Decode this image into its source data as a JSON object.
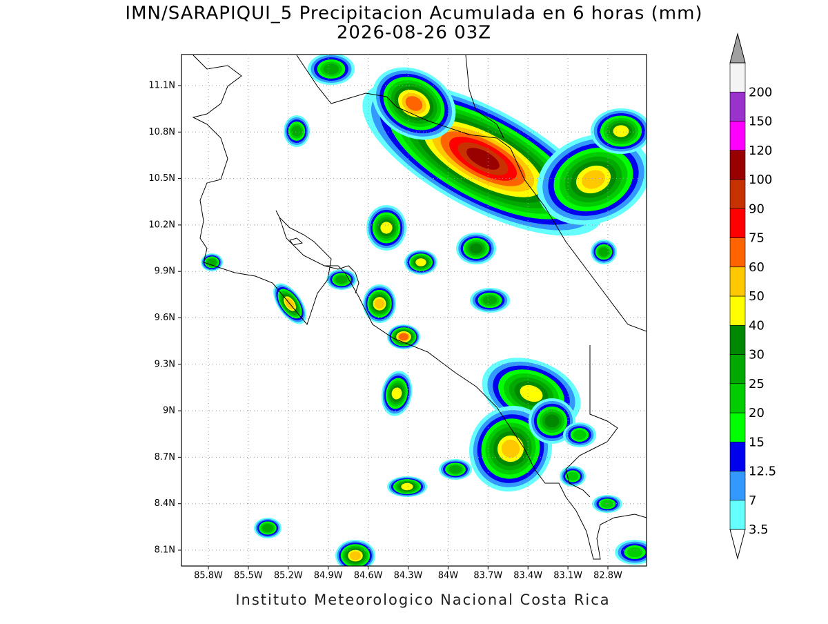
{
  "title": [
    "IMN/SARAPIQUI_5 Precipitacion Acumulada en 6 horas (mm)",
    "2026-08-26 03Z"
  ],
  "lat_labels": [
    "11.1N",
    "10.8N",
    "10.5N",
    "10.2N",
    "9.9N",
    "9.6N",
    "9.3N",
    "9N",
    "8.7N",
    "8.4N",
    "8.1N"
  ],
  "lon_labels": [
    "85.8W",
    "85.5W",
    "85.2W",
    "84.9W",
    "84.6W",
    "84.3W",
    "84W",
    "83.7W",
    "83.4W",
    "83.1W",
    "82.8W"
  ],
  "colorbar": {
    "labels": [
      "3.5",
      "7",
      "12.5",
      "15",
      "20",
      "25",
      "30",
      "40",
      "50",
      "60",
      "75",
      "90",
      "100",
      "120",
      "150",
      "200"
    ],
    "colors": [
      "#66ffff",
      "#3399ff",
      "#0000ee",
      "#00ff00",
      "#00cc00",
      "#00a800",
      "#008800",
      "#ffff00",
      "#ffc800",
      "#ff6400",
      "#ff0000",
      "#c83200",
      "#990000",
      "#ff00ff",
      "#9933cc",
      "#f4f4f4"
    ]
  },
  "credit": "Instituto Meteorologico Nacional Costa Rica"
}
